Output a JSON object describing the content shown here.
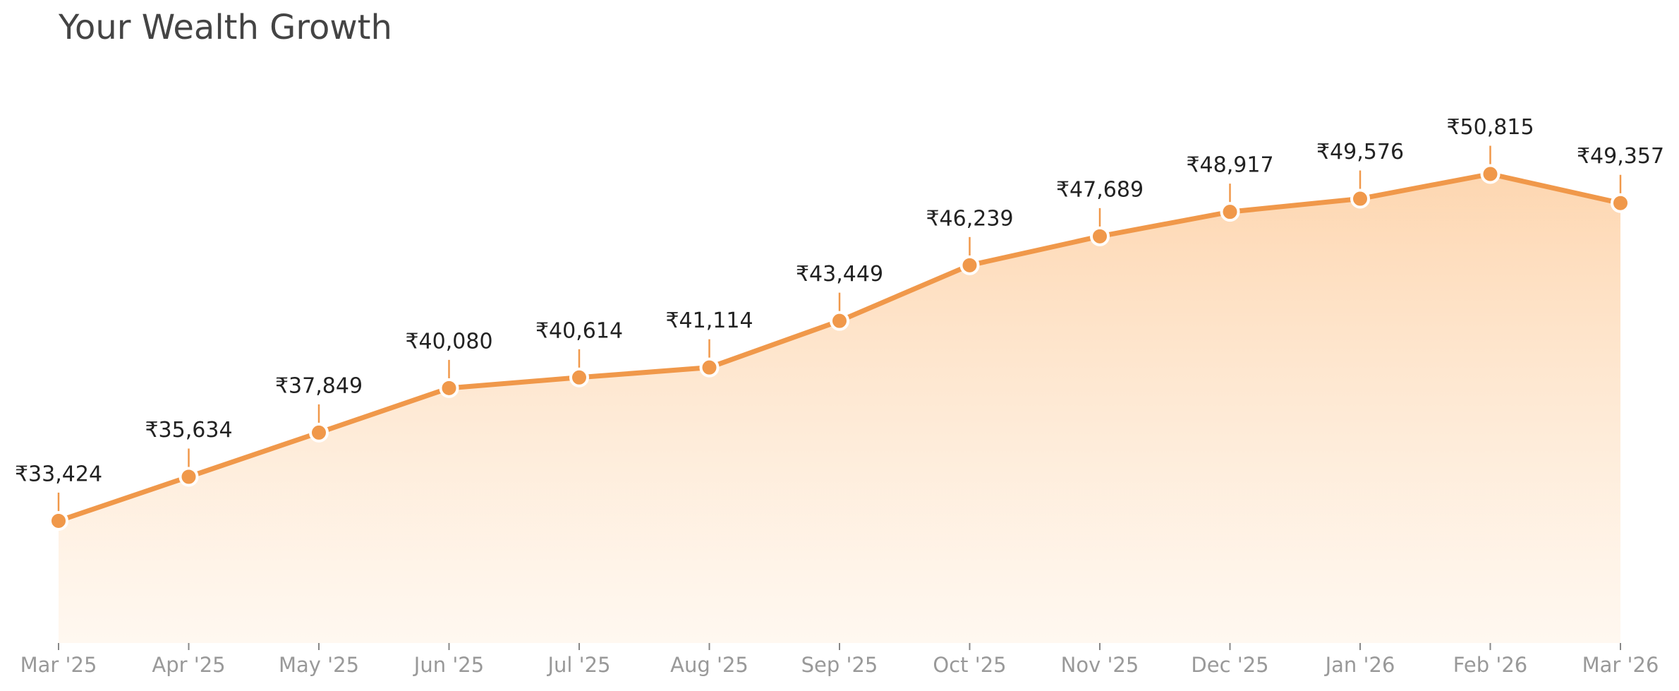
{
  "chart_data": {
    "type": "area",
    "title": "Your Wealth Growth",
    "categories": [
      "Mar '25",
      "Apr '25",
      "May '25",
      "Jun '25",
      "Jul '25",
      "Aug '25",
      "Sep '25",
      "Oct '25",
      "Nov '25",
      "Dec '25",
      "Jan '26",
      "Feb '26",
      "Mar '26"
    ],
    "values": [
      33424,
      35634,
      37849,
      40080,
      40614,
      41114,
      43449,
      46239,
      47689,
      48917,
      49576,
      50815,
      49357
    ],
    "value_labels": [
      "₹33,424",
      "₹35,634",
      "₹37,849",
      "₹40,080",
      "₹40,614",
      "₹41,114",
      "₹43,449",
      "₹46,239",
      "₹47,689",
      "₹48,917",
      "₹49,576",
      "₹50,815",
      "₹49,357"
    ],
    "color": "#f0984a",
    "ylim": [
      27300,
      56000
    ]
  }
}
